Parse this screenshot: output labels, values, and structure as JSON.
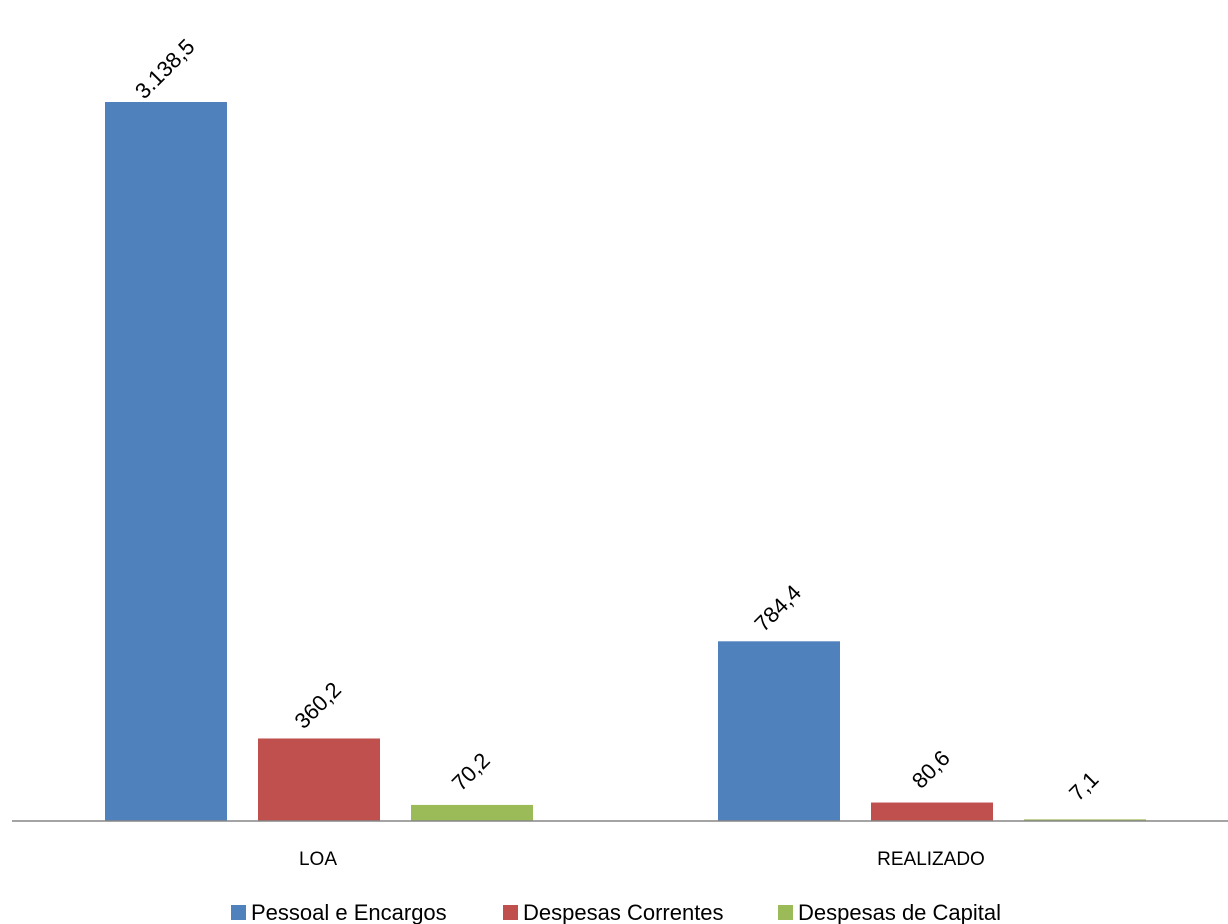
{
  "chart_data": {
    "type": "bar",
    "title": "",
    "xlabel": "",
    "ylabel": "",
    "categories": [
      "LOA",
      "REALIZADO"
    ],
    "series": [
      {
        "name": "Pessoal e Encargos",
        "color": "#4F81BD",
        "values": [
          3138.5,
          784.4
        ],
        "labels": [
          "3.138,5",
          "784,4"
        ]
      },
      {
        "name": "Despesas Correntes",
        "color": "#C0504D",
        "values": [
          360.2,
          80.6
        ],
        "labels": [
          "360,2",
          "80,6"
        ]
      },
      {
        "name": "Despesas de Capital",
        "color": "#9BBB59",
        "values": [
          70.2,
          7.1
        ],
        "labels": [
          "70,2",
          "7,1"
        ]
      }
    ],
    "ylim": [
      0,
      3138.5
    ],
    "grid": false,
    "y_axis_visible": false,
    "legend_position": "bottom"
  }
}
